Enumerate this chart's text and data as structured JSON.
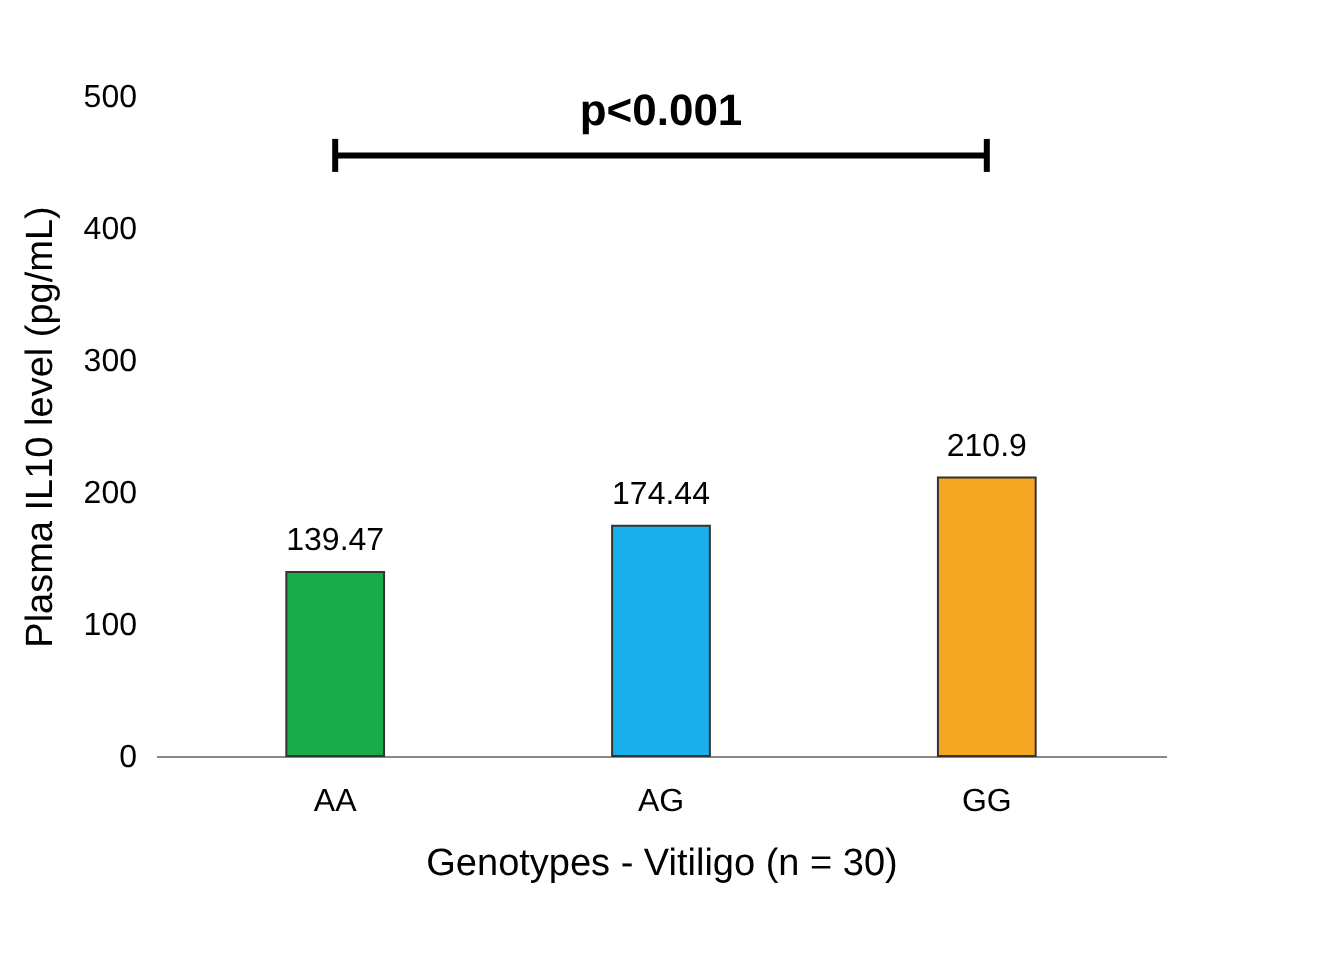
{
  "chart_data": {
    "type": "bar",
    "xlabel": "Genotypes - Vitiligo (n = 30)",
    "ylabel": "Plasma IL10 level (pg/mL)",
    "categories": [
      "AA",
      "AG",
      "GG"
    ],
    "values": [
      139.47,
      174.44,
      210.9
    ],
    "colors": [
      "#1aab4b",
      "#1ab0ec",
      "#f5a623"
    ],
    "ylim": [
      0,
      500
    ],
    "yticks": [
      0,
      100,
      200,
      300,
      400,
      500
    ],
    "grid": false,
    "data_labels": true,
    "annotations": [
      "p<0.001"
    ]
  }
}
